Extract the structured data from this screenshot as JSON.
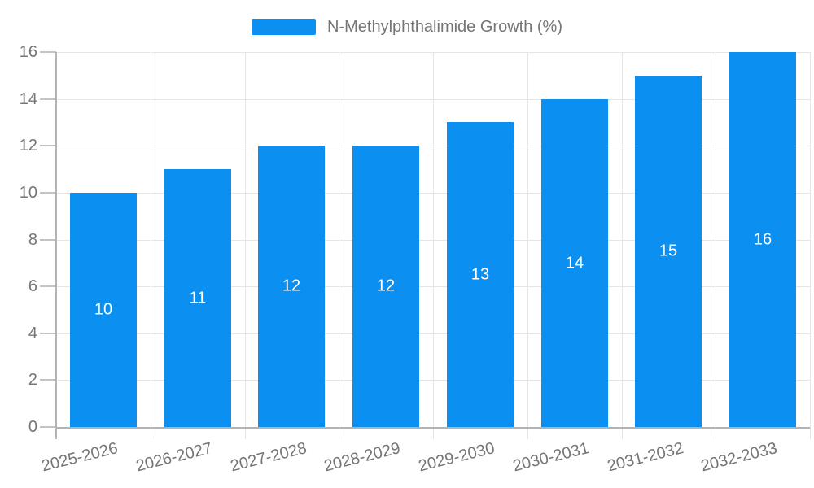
{
  "chart_data": {
    "type": "bar",
    "title": "N-Methylphthalimide Growth (%)",
    "categories": [
      "2025-2026",
      "2026-2027",
      "2027-2028",
      "2028-2029",
      "2029-2030",
      "2030-2031",
      "2031-2032",
      "2032-2033"
    ],
    "values": [
      10,
      11,
      12,
      12,
      13,
      14,
      15,
      16
    ],
    "xlabel": "",
    "ylabel": "",
    "ylim": [
      0,
      16
    ],
    "yticks": [
      0,
      2,
      4,
      6,
      8,
      10,
      12,
      14,
      16
    ],
    "grid": true,
    "legend_position": "top-center",
    "value_labels": "inside-center"
  },
  "legend": {
    "label": "N-Methylphthalimide Growth (%)"
  },
  "colors": {
    "bar": "#0B90F2",
    "bar_value_text": "#FFFFFF",
    "axis_line": "#B3B3B3",
    "grid_line": "#E5E5E5",
    "tick_line": "#C4C4C4",
    "label_text": "#757575",
    "background": "#FFFFFF"
  }
}
